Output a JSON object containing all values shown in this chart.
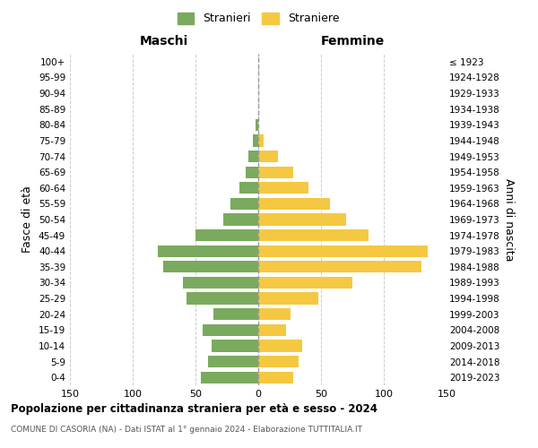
{
  "age_groups": [
    "100+",
    "95-99",
    "90-94",
    "85-89",
    "80-84",
    "75-79",
    "70-74",
    "65-69",
    "60-64",
    "55-59",
    "50-54",
    "45-49",
    "40-44",
    "35-39",
    "30-34",
    "25-29",
    "20-24",
    "15-19",
    "10-14",
    "5-9",
    "0-4"
  ],
  "birth_years": [
    "≤ 1923",
    "1924-1928",
    "1929-1933",
    "1934-1938",
    "1939-1943",
    "1944-1948",
    "1949-1953",
    "1954-1958",
    "1959-1963",
    "1964-1968",
    "1969-1973",
    "1974-1978",
    "1979-1983",
    "1984-1988",
    "1989-1993",
    "1994-1998",
    "1999-2003",
    "2004-2008",
    "2009-2013",
    "2014-2018",
    "2019-2023"
  ],
  "maschi": [
    0,
    0,
    0,
    0,
    2,
    4,
    8,
    10,
    15,
    22,
    28,
    50,
    80,
    76,
    60,
    57,
    36,
    44,
    37,
    40,
    46
  ],
  "femmine": [
    0,
    0,
    0,
    0,
    0,
    4,
    16,
    28,
    40,
    57,
    70,
    88,
    135,
    130,
    75,
    48,
    26,
    22,
    35,
    32,
    28
  ],
  "maschi_color": "#7aaa5e",
  "femmine_color": "#f5c842",
  "maschi_label": "Stranieri",
  "femmine_label": "Straniere",
  "title": "Popolazione per cittadinanza straniera per età e sesso - 2024",
  "subtitle": "COMUNE DI CASORIA (NA) - Dati ISTAT al 1° gennaio 2024 - Elaborazione TUTTITALIA.IT",
  "left_header": "Maschi",
  "right_header": "Femmine",
  "ylabel_left": "Fasce di età",
  "ylabel_right": "Anni di nascita",
  "xlim": 150,
  "background_color": "#ffffff",
  "grid_color": "#cccccc"
}
